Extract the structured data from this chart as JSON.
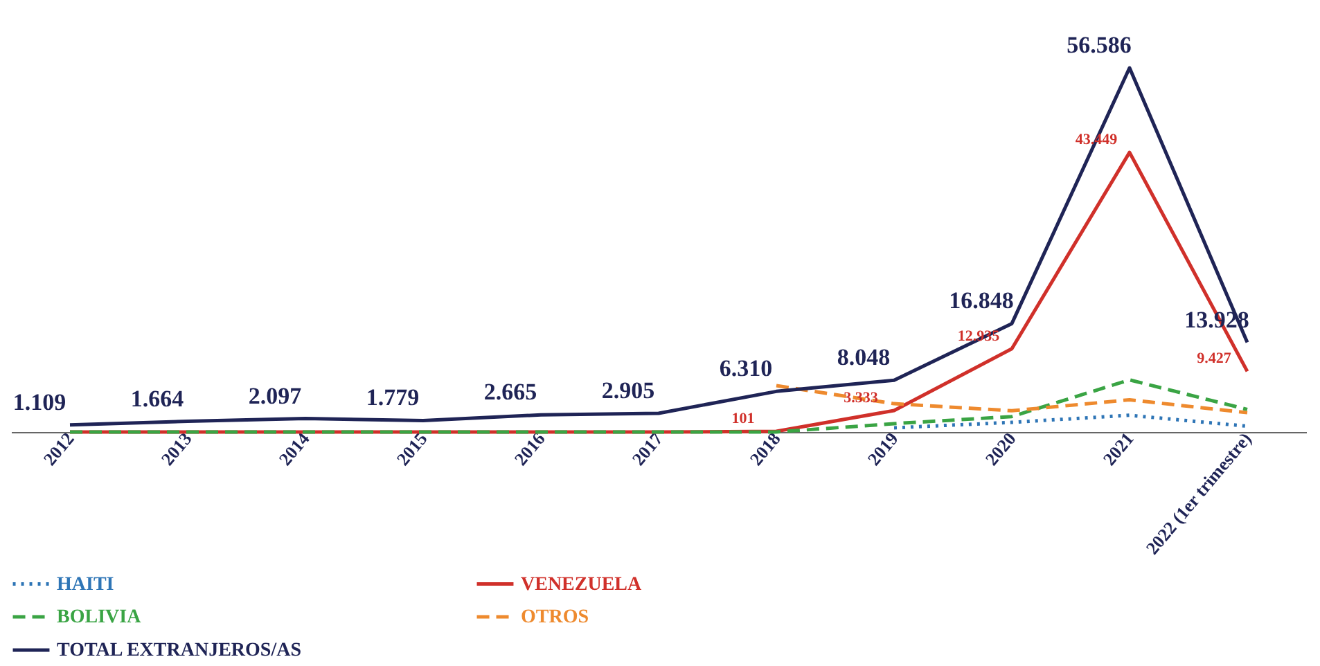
{
  "chart_data": {
    "type": "line",
    "categories": [
      "2012",
      "2013",
      "2014",
      "2015",
      "2016",
      "2017",
      "2018",
      "2019",
      "2020",
      "2021",
      "2022 (1er trimestre)"
    ],
    "tick_labels": "x",
    "legend": "bottom left",
    "grid": false,
    "series": [
      {
        "name": "HAITI",
        "color": "#2e75b6",
        "line_style": "dotted",
        "values": [
          null,
          null,
          null,
          null,
          null,
          null,
          null,
          650,
          1500,
          2600,
          900
        ]
      },
      {
        "name": "VENEZUELA",
        "color": "#d0302a",
        "line_style": "solid",
        "values": [
          0,
          0,
          0,
          0,
          0,
          0,
          101,
          3333,
          12935,
          43449,
          9427
        ],
        "value_labels": [
          null,
          null,
          null,
          null,
          null,
          null,
          "101",
          "3.333",
          "12.935",
          "43.449",
          "9.427"
        ]
      },
      {
        "name": "BOLIVIA",
        "color": "#3aa444",
        "line_style": "dashed",
        "values": [
          0,
          0,
          0,
          0,
          0,
          0,
          0,
          1300,
          2400,
          8100,
          3500
        ]
      },
      {
        "name": "OTROS",
        "color": "#ee8a2e",
        "line_style": "dashed",
        "values": [
          null,
          null,
          null,
          null,
          null,
          null,
          7200,
          4400,
          3300,
          5000,
          3000
        ]
      },
      {
        "name": "TOTAL EXTRANJEROS/AS",
        "color": "#1f2456",
        "line_style": "solid",
        "values": [
          1109,
          1664,
          2097,
          1779,
          2665,
          2905,
          6310,
          8048,
          16848,
          56586,
          13928
        ],
        "value_labels": [
          "1.109",
          "1.664",
          "2.097",
          "1.779",
          "2.665",
          "2.905",
          "6.310",
          "8.048",
          "16.848",
          "56.586",
          "13.928"
        ]
      }
    ]
  }
}
